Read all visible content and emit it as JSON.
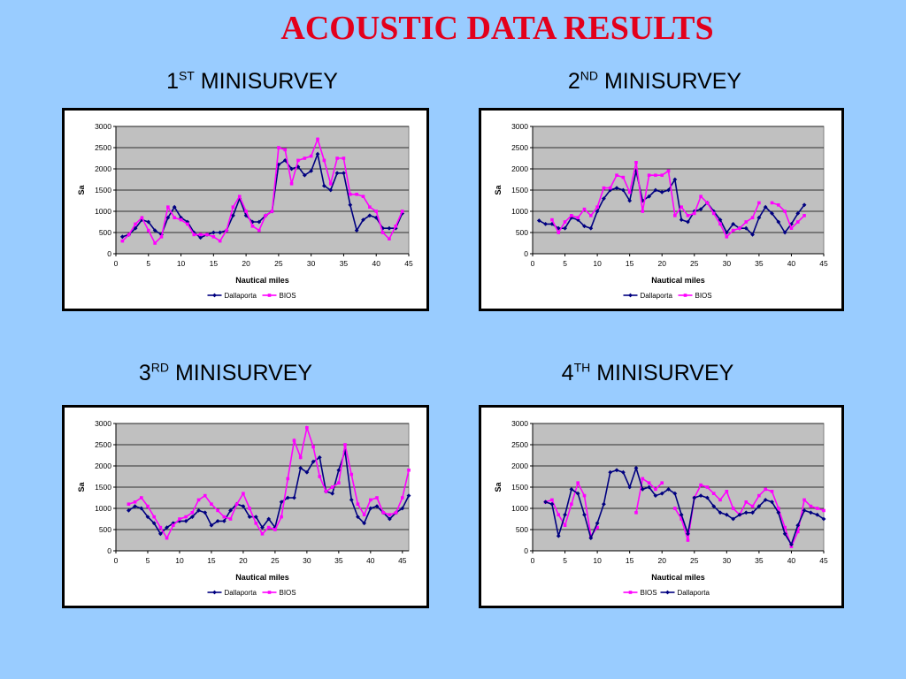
{
  "title": "ACOUSTIC DATA RESULTS",
  "panels": [
    {
      "num": "1",
      "sup": "ST",
      "rest": " MINISURVEY"
    },
    {
      "num": "2",
      "sup": "ND",
      "rest": " MINISURVEY"
    },
    {
      "num": "3",
      "sup": "RD",
      "rest": " MINISURVEY"
    },
    {
      "num": "4",
      "sup": "TH",
      "rest": " MINISURVEY"
    }
  ],
  "colors": {
    "dallaporta": "#000080",
    "bios": "#ff00ff",
    "plot_bg": "#c0c0c0"
  },
  "chart_data": [
    {
      "type": "line",
      "xlabel": "Nautical miles",
      "ylabel": "Sa",
      "xlim": [
        0,
        45
      ],
      "ylim": [
        0,
        3000
      ],
      "xticks": [
        0,
        5,
        10,
        15,
        20,
        25,
        30,
        35,
        40,
        45
      ],
      "yticks": [
        0,
        500,
        1000,
        1500,
        2000,
        2500,
        3000
      ],
      "legend": [
        "Dallaporta",
        "BIOS"
      ],
      "legend_position": "bottom",
      "grid": true,
      "series": [
        {
          "name": "Dallaporta",
          "x": [
            1,
            2,
            3,
            4,
            5,
            6,
            7,
            8,
            9,
            10,
            11,
            12,
            13,
            14,
            15,
            16,
            17,
            18,
            19,
            20,
            21,
            22,
            23,
            24,
            25,
            26,
            27,
            28,
            29,
            30,
            31,
            32,
            33,
            34,
            35,
            36,
            37,
            38,
            39,
            40,
            41,
            42,
            43,
            44
          ],
          "values": [
            400,
            450,
            600,
            800,
            750,
            550,
            450,
            850,
            1100,
            850,
            750,
            500,
            380,
            450,
            500,
            500,
            550,
            900,
            1300,
            900,
            750,
            750,
            900,
            1000,
            2100,
            2200,
            2000,
            2050,
            1850,
            1950,
            2350,
            1600,
            1500,
            1900,
            1900,
            1150,
            550,
            800,
            900,
            850,
            600,
            600,
            600,
            950
          ]
        },
        {
          "name": "BIOS",
          "x": [
            1,
            2,
            3,
            4,
            5,
            6,
            7,
            8,
            9,
            10,
            11,
            12,
            13,
            14,
            15,
            16,
            17,
            18,
            19,
            20,
            21,
            22,
            23,
            24,
            25,
            26,
            27,
            28,
            29,
            30,
            31,
            32,
            33,
            34,
            35,
            36,
            37,
            38,
            39,
            40,
            41,
            42,
            43,
            44
          ],
          "values": [
            300,
            450,
            700,
            850,
            550,
            250,
            400,
            1100,
            850,
            800,
            700,
            450,
            450,
            450,
            400,
            300,
            550,
            1100,
            1350,
            1000,
            650,
            550,
            900,
            1000,
            2500,
            2450,
            1650,
            2200,
            2250,
            2300,
            2700,
            2200,
            1650,
            2250,
            2250,
            1400,
            1400,
            1350,
            1100,
            1000,
            500,
            350,
            650,
            1000
          ]
        }
      ]
    },
    {
      "type": "line",
      "xlabel": "Nautical miles",
      "ylabel": "Sa",
      "xlim": [
        0,
        45
      ],
      "ylim": [
        0,
        3000
      ],
      "xticks": [
        0,
        5,
        10,
        15,
        20,
        25,
        30,
        35,
        40,
        45
      ],
      "yticks": [
        0,
        500,
        1000,
        1500,
        2000,
        2500,
        3000
      ],
      "legend": [
        "Dallaporta",
        "BIOS"
      ],
      "legend_position": "bottom",
      "grid": true,
      "series": [
        {
          "name": "Dallaporta",
          "x": [
            1,
            2,
            3,
            4,
            5,
            6,
            7,
            8,
            9,
            10,
            11,
            12,
            13,
            14,
            15,
            16,
            17,
            18,
            19,
            20,
            21,
            22,
            23,
            24,
            25,
            26,
            27,
            28,
            29,
            30,
            31,
            32,
            33,
            34,
            35,
            36,
            37,
            38,
            39,
            40,
            41,
            42
          ],
          "values": [
            780,
            700,
            700,
            600,
            600,
            850,
            800,
            650,
            600,
            1000,
            1300,
            1500,
            1550,
            1500,
            1250,
            1950,
            1250,
            1350,
            1500,
            1450,
            1500,
            1750,
            800,
            750,
            1000,
            1050,
            1200,
            1000,
            800,
            500,
            700,
            600,
            600,
            450,
            850,
            1100,
            950,
            750,
            500,
            700,
            950,
            1150
          ]
        },
        {
          "name": "BIOS",
          "x": [
            3,
            4,
            5,
            6,
            7,
            8,
            9,
            10,
            11,
            12,
            13,
            14,
            15,
            16,
            17,
            18,
            19,
            20,
            21,
            22,
            23,
            24,
            25,
            26,
            27,
            28,
            29,
            30,
            31,
            32,
            33,
            34,
            35,
            36,
            37,
            38,
            39,
            40,
            41,
            42
          ],
          "values": [
            800,
            500,
            750,
            900,
            850,
            1050,
            900,
            1100,
            1550,
            1550,
            1850,
            1800,
            1450,
            2150,
            1000,
            1850,
            1850,
            1850,
            1950,
            900,
            1100,
            900,
            950,
            1350,
            1200,
            950,
            700,
            400,
            550,
            600,
            750,
            850,
            1200,
            null,
            1200,
            1150,
            1000,
            600,
            750,
            900
          ]
        }
      ]
    },
    {
      "type": "line",
      "xlabel": "Nautical miles",
      "ylabel": "Sa",
      "xlim": [
        0,
        46
      ],
      "ylim": [
        0,
        3000
      ],
      "xticks": [
        0,
        5,
        10,
        15,
        20,
        25,
        30,
        35,
        40,
        45
      ],
      "yticks": [
        0,
        500,
        1000,
        1500,
        2000,
        2500,
        3000
      ],
      "legend": [
        "Dallaporta",
        "BIOS"
      ],
      "legend_position": "bottom",
      "grid": true,
      "series": [
        {
          "name": "Dallaporta",
          "x": [
            2,
            3,
            4,
            5,
            6,
            7,
            8,
            9,
            10,
            11,
            12,
            13,
            14,
            15,
            16,
            17,
            18,
            19,
            20,
            21,
            22,
            23,
            24,
            25,
            26,
            27,
            28,
            29,
            30,
            31,
            32,
            33,
            34,
            35,
            36,
            37,
            38,
            39,
            40,
            41,
            42,
            43,
            44,
            45,
            46
          ],
          "values": [
            950,
            1050,
            1000,
            800,
            650,
            400,
            550,
            650,
            700,
            700,
            800,
            950,
            900,
            600,
            700,
            700,
            950,
            1100,
            1050,
            800,
            800,
            550,
            750,
            550,
            1150,
            1250,
            1250,
            1950,
            1850,
            2100,
            2200,
            1400,
            1350,
            1900,
            2350,
            1200,
            800,
            650,
            1000,
            1050,
            900,
            750,
            900,
            1000,
            1300
          ]
        },
        {
          "name": "BIOS",
          "x": [
            2,
            3,
            4,
            5,
            6,
            7,
            8,
            9,
            10,
            11,
            12,
            13,
            14,
            15,
            16,
            17,
            18,
            19,
            20,
            21,
            22,
            23,
            24,
            25,
            26,
            27,
            28,
            29,
            30,
            31,
            32,
            33,
            34,
            35,
            36,
            37,
            38,
            39,
            40,
            41,
            42,
            43,
            44,
            45,
            46
          ],
          "values": [
            1100,
            1150,
            1250,
            1050,
            800,
            550,
            300,
            600,
            750,
            800,
            900,
            1200,
            1300,
            1100,
            950,
            800,
            750,
            1100,
            1350,
            1000,
            650,
            400,
            550,
            500,
            800,
            1700,
            2600,
            2200,
            2900,
            2450,
            1750,
            1400,
            1500,
            1600,
            2500,
            1800,
            1100,
            850,
            1200,
            1250,
            900,
            850,
            900,
            1250,
            1900
          ]
        }
      ]
    },
    {
      "type": "line",
      "xlabel": "Nautical miles",
      "ylabel": "Sa",
      "xlim": [
        0,
        45
      ],
      "ylim": [
        0,
        3000
      ],
      "xticks": [
        0,
        5,
        10,
        15,
        20,
        25,
        30,
        35,
        40,
        45
      ],
      "yticks": [
        0,
        500,
        1000,
        1500,
        2000,
        2500,
        3000
      ],
      "legend": [
        "BIOS",
        "Dallaporta"
      ],
      "legend_position": "bottom",
      "grid": true,
      "series": [
        {
          "name": "BIOS",
          "x": [
            2,
            3,
            4,
            5,
            6,
            7,
            8,
            9,
            10,
            11,
            12,
            13,
            14,
            15,
            16,
            17,
            18,
            19,
            20,
            21,
            22,
            23,
            24,
            25,
            26,
            27,
            28,
            29,
            30,
            31,
            32,
            33,
            34,
            35,
            36,
            37,
            38,
            39,
            40,
            41,
            42,
            43,
            44,
            45
          ],
          "values": [
            1150,
            1200,
            850,
            600,
            1100,
            1600,
            1300,
            350,
            550,
            null,
            null,
            null,
            null,
            null,
            900,
            1700,
            1600,
            1450,
            1600,
            null,
            1000,
            750,
            250,
            1250,
            1550,
            1500,
            1350,
            1200,
            1400,
            1000,
            850,
            1150,
            1050,
            1300,
            1450,
            1400,
            1000,
            550,
            100,
            450,
            1200,
            1050,
            1000,
            950
          ]
        },
        {
          "name": "Dallaporta",
          "x": [
            2,
            3,
            4,
            5,
            6,
            7,
            8,
            9,
            10,
            11,
            12,
            13,
            14,
            15,
            16,
            17,
            18,
            19,
            20,
            21,
            22,
            23,
            24,
            25,
            26,
            27,
            28,
            29,
            30,
            31,
            32,
            33,
            34,
            35,
            36,
            37,
            38,
            39,
            40,
            41,
            42,
            43,
            44,
            45
          ],
          "values": [
            1150,
            1100,
            350,
            850,
            1450,
            1350,
            850,
            300,
            650,
            1100,
            1850,
            1900,
            1850,
            1500,
            1950,
            1450,
            1500,
            1300,
            1350,
            1450,
            1350,
            850,
            400,
            1250,
            1300,
            1250,
            1050,
            900,
            850,
            750,
            850,
            900,
            900,
            1050,
            1200,
            1150,
            900,
            400,
            150,
            600,
            950,
            900,
            850,
            750
          ]
        }
      ]
    }
  ]
}
